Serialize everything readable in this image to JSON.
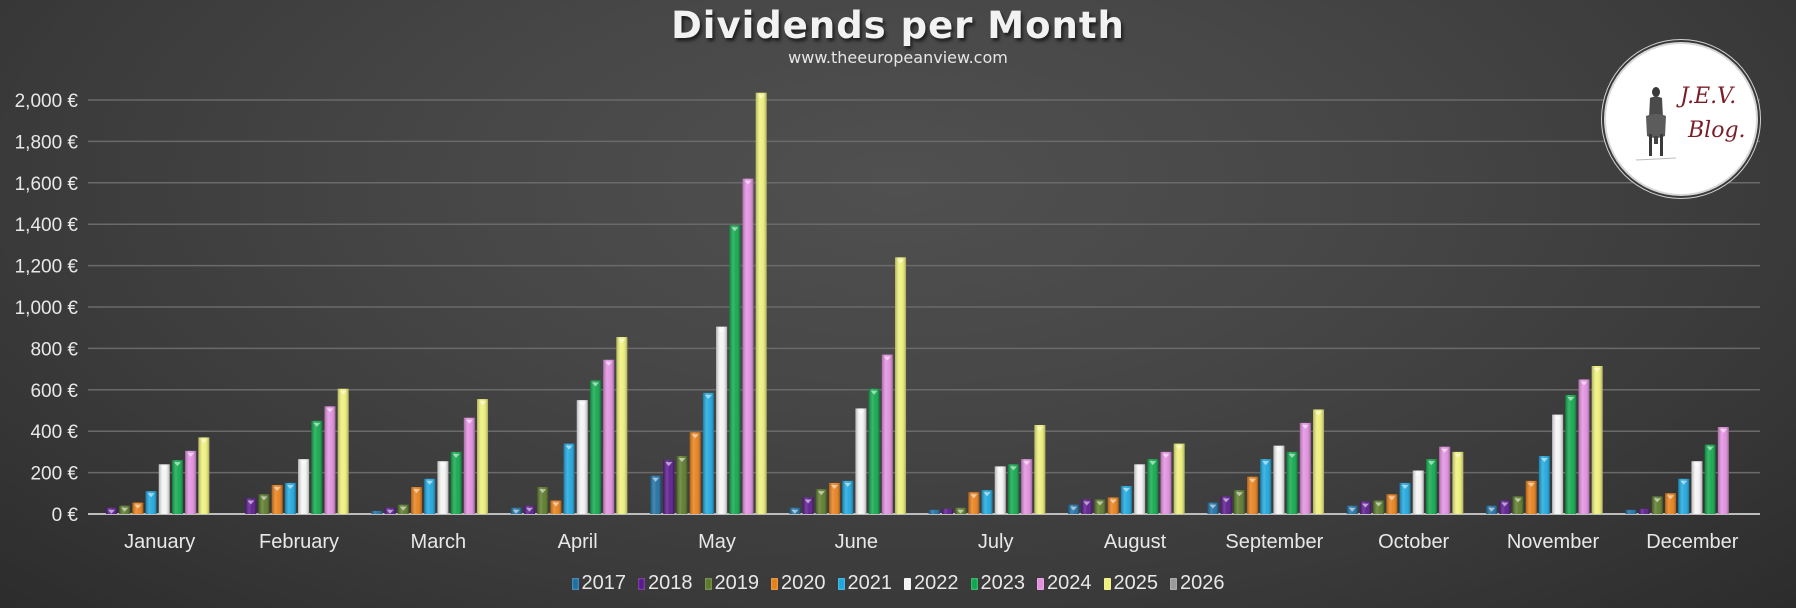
{
  "chart_data": {
    "type": "bar",
    "title": "Dividends per Month",
    "subtitle": "www.theeuropeanview.com",
    "xlabel": "",
    "ylabel": "",
    "ylim": [
      0,
      2000
    ],
    "ytick_step": 200,
    "ytick_labels": [
      "0 €",
      "200 €",
      "400 €",
      "600 €",
      "800 €",
      "1,000 €",
      "1,200 €",
      "1,400 €",
      "1,600 €",
      "1,800 €",
      "2,000 €"
    ],
    "grid": true,
    "legend_position": "bottom-center",
    "categories": [
      "January",
      "February",
      "March",
      "April",
      "May",
      "June",
      "July",
      "August",
      "September",
      "October",
      "November",
      "December"
    ],
    "series": [
      {
        "name": "2017",
        "color": "#1f6fa3",
        "values": [
          0,
          0,
          15,
          30,
          185,
          30,
          20,
          45,
          55,
          40,
          40,
          20
        ]
      },
      {
        "name": "2018",
        "color": "#5a1a8c",
        "values": [
          30,
          75,
          30,
          40,
          260,
          80,
          25,
          70,
          85,
          60,
          65,
          25
        ]
      },
      {
        "name": "2019",
        "color": "#5b7a2a",
        "values": [
          40,
          95,
          45,
          130,
          280,
          120,
          30,
          70,
          115,
          65,
          85,
          85
        ]
      },
      {
        "name": "2020",
        "color": "#e8801a",
        "values": [
          55,
          140,
          130,
          65,
          395,
          150,
          105,
          80,
          180,
          95,
          160,
          100
        ]
      },
      {
        "name": "2021",
        "color": "#1ea7de",
        "values": [
          110,
          150,
          170,
          340,
          585,
          160,
          115,
          135,
          265,
          150,
          280,
          170
        ]
      },
      {
        "name": "2022",
        "color": "#f4f4f4",
        "values": [
          240,
          265,
          255,
          550,
          905,
          510,
          230,
          240,
          330,
          210,
          480,
          255
        ]
      },
      {
        "name": "2023",
        "color": "#10a84c",
        "values": [
          260,
          450,
          300,
          645,
          1395,
          605,
          240,
          265,
          300,
          265,
          575,
          335
        ]
      },
      {
        "name": "2024",
        "color": "#e290e0",
        "values": [
          305,
          520,
          465,
          745,
          1620,
          770,
          265,
          300,
          440,
          325,
          650,
          420
        ]
      },
      {
        "name": "2025",
        "color": "#eef07a",
        "values": [
          370,
          605,
          555,
          855,
          2035,
          1240,
          430,
          340,
          505,
          300,
          715,
          0
        ]
      },
      {
        "name": "2026",
        "color": "#9a9a9a",
        "values": [
          0,
          0,
          0,
          0,
          0,
          0,
          0,
          0,
          0,
          0,
          0,
          0
        ]
      }
    ]
  },
  "logo": {
    "line1": "J.E.V.",
    "line2": "Blog."
  }
}
